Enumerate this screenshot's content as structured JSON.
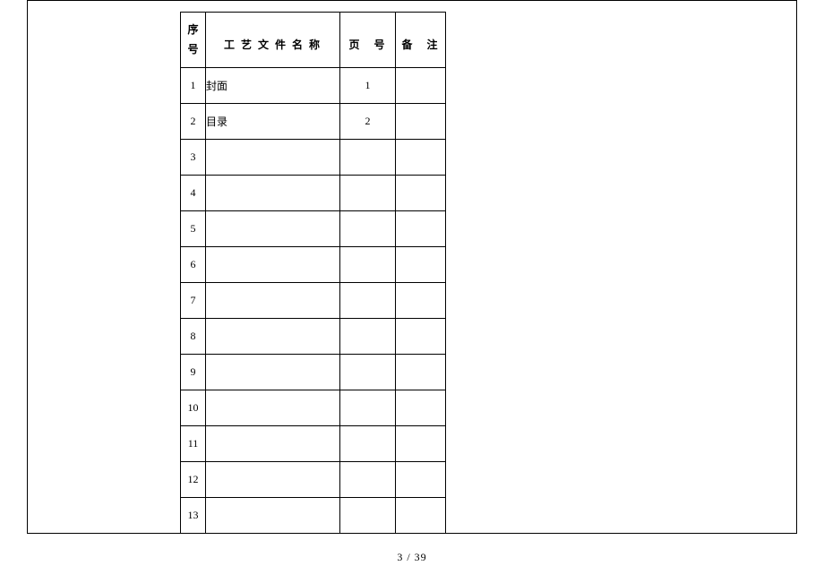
{
  "table": {
    "headers": {
      "seq_line1": "序",
      "seq_line2": "号",
      "name": "工 艺 文 件 名 称",
      "page": "页　号",
      "remark": "备　注"
    },
    "rows": [
      {
        "seq": "1",
        "name": "封面",
        "page": "1",
        "remark": ""
      },
      {
        "seq": "2",
        "name": "目录",
        "page": "2",
        "remark": ""
      },
      {
        "seq": "3",
        "name": "",
        "page": "",
        "remark": ""
      },
      {
        "seq": "4",
        "name": "",
        "page": "",
        "remark": ""
      },
      {
        "seq": "5",
        "name": "",
        "page": "",
        "remark": ""
      },
      {
        "seq": "6",
        "name": "",
        "page": "",
        "remark": ""
      },
      {
        "seq": "7",
        "name": "",
        "page": "",
        "remark": ""
      },
      {
        "seq": "8",
        "name": "",
        "page": "",
        "remark": ""
      },
      {
        "seq": "9",
        "name": "",
        "page": "",
        "remark": ""
      },
      {
        "seq": "10",
        "name": "",
        "page": "",
        "remark": ""
      },
      {
        "seq": "11",
        "name": "",
        "page": "",
        "remark": ""
      },
      {
        "seq": "12",
        "name": "",
        "page": "",
        "remark": ""
      },
      {
        "seq": "13",
        "name": "",
        "page": "",
        "remark": ""
      }
    ]
  },
  "page_footer": "3  / 39"
}
